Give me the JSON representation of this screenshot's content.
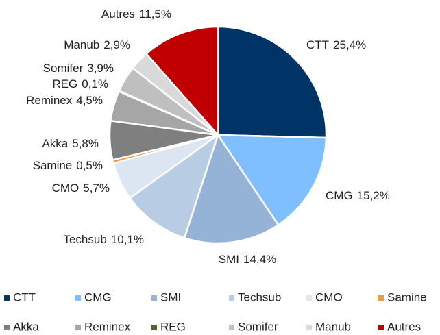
{
  "chart_data": {
    "type": "pie",
    "categories": [
      "CTT",
      "CMG",
      "SMI",
      "Techsub",
      "CMO",
      "Samine",
      "Akka",
      "Reminex",
      "REG",
      "Somifer",
      "Manub",
      "Autres"
    ],
    "values": [
      25.4,
      15.2,
      14.4,
      10.1,
      5.7,
      0.5,
      5.8,
      4.5,
      0.1,
      3.9,
      2.9,
      11.5
    ],
    "value_labels": [
      "25,4%",
      "15,2%",
      "14,4%",
      "10,1%",
      "5,7%",
      "0,5%",
      "5,8%",
      "4,5%",
      "0,1%",
      "3,9%",
      "2,9%",
      "11,5%"
    ],
    "colors": [
      "#003366",
      "#7fbfff",
      "#95b3d7",
      "#b8cce4",
      "#dce6f2",
      "#f79646",
      "#7f7f7f",
      "#a6a6a6",
      "#4f6228",
      "#bfbfbf",
      "#d9d9d9",
      "#c00000"
    ],
    "legend": "bottom"
  }
}
